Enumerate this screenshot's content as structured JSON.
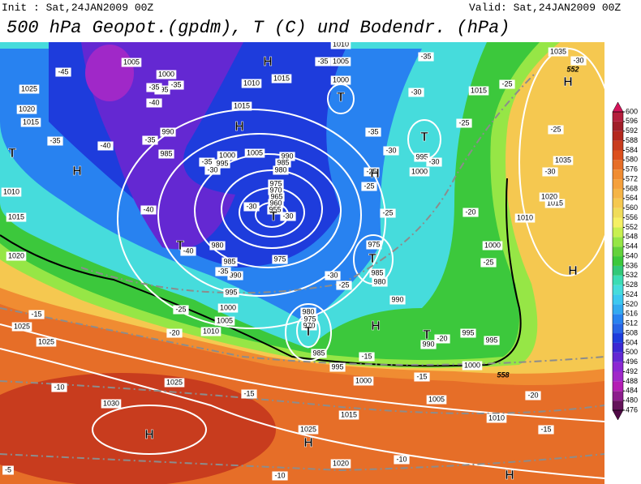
{
  "header": {
    "init": "Init : Sat,24JAN2009 00Z",
    "valid": "Valid: Sat,24JAN2009 00Z",
    "title": "500 hPa Geopot.(gpdm), T (C) und Bodendr. (hPa)"
  },
  "colorbar": {
    "ticks": [
      476,
      480,
      484,
      488,
      492,
      496,
      500,
      504,
      508,
      512,
      516,
      520,
      524,
      528,
      532,
      536,
      540,
      544,
      548,
      552,
      556,
      560,
      564,
      568,
      572,
      576,
      580,
      584,
      588,
      592,
      596,
      600
    ],
    "colors": [
      "#64145a",
      "#8c1e8c",
      "#b41eb4",
      "#a028c8",
      "#8c28d2",
      "#6428d2",
      "#3c28d2",
      "#1e3cdc",
      "#2864e6",
      "#2882f0",
      "#32aaf0",
      "#3cc8f0",
      "#46dcdc",
      "#3cdcb4",
      "#32c878",
      "#3cc83c",
      "#64d23c",
      "#96e646",
      "#c8f050",
      "#f5f064",
      "#f0dc5a",
      "#f5c850",
      "#f5b446",
      "#f5a03c",
      "#f08c32",
      "#e66e28",
      "#dc501e",
      "#c83c1e",
      "#b4281e",
      "#a01e28",
      "#b41e3c"
    ],
    "top_color": "#d4145a",
    "bottom_color": "#500a46"
  },
  "map": {
    "pressure_labels": [
      "1005",
      "1000",
      "995",
      "1010",
      "1015",
      "1015",
      "990",
      "985",
      "1000",
      "995",
      "1005",
      "990",
      "985",
      "980",
      "975",
      "970",
      "965",
      "960",
      "955",
      "980",
      "985",
      "990",
      "995",
      "1000",
      "1005",
      "1010",
      "975",
      "1025",
      "1020",
      "1015",
      "1010",
      "1015",
      "1020",
      "1025",
      "1025",
      "1025",
      "1030",
      "1025",
      "1020",
      "1015",
      "1010",
      "1005",
      "1000",
      "995",
      "985",
      "980",
      "975",
      "970",
      "975",
      "985",
      "980",
      "990",
      "995",
      "995",
      "990",
      "1000",
      "1000",
      "1010",
      "1015",
      "1020",
      "1035",
      "1035",
      "1015",
      "1000",
      "1005",
      "1010",
      "995",
      "1000"
    ],
    "temperature_labels": [
      "-45",
      "-40",
      "-35",
      "-35",
      "-35",
      "-40",
      "-35",
      "-35",
      "-30",
      "-40",
      "-30",
      "-30",
      "-40",
      "-35",
      "-30",
      "-25",
      "-25",
      "-20",
      "-15",
      "-15",
      "-10",
      "-15",
      "-10",
      "-10",
      "-15",
      "-20",
      "-25",
      "-25",
      "-20",
      "-25",
      "-25",
      "-30",
      "-35",
      "-30",
      "-25",
      "-25",
      "-35",
      "-35",
      "-30",
      "-25",
      "-30",
      "-20",
      "-15",
      "-5",
      "-30"
    ],
    "centers": [
      "H",
      "H",
      "H",
      "H",
      "H",
      "H",
      "H",
      "H",
      "H",
      "H",
      "T",
      "T",
      "T",
      "T",
      "T",
      "T",
      "T",
      "T"
    ],
    "contour_labels": [
      "552",
      "558"
    ]
  }
}
